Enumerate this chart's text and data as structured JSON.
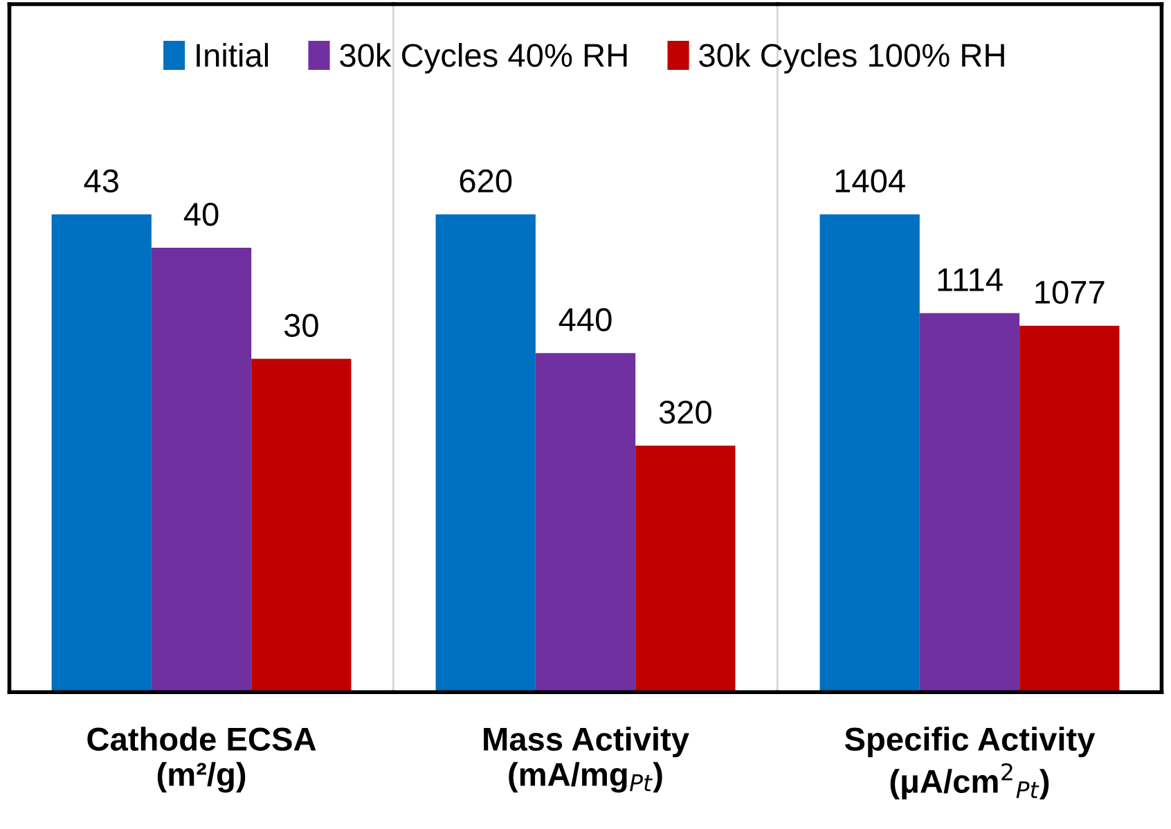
{
  "chart_data": [
    {
      "type": "bar",
      "categories": [
        null
      ],
      "xlabel": "Cathode ECSA\n(m²/g)",
      "data_labels": true,
      "legend": "top",
      "series": [
        {
          "name": "Initial",
          "color": "#0070c0",
          "values": [
            43
          ]
        },
        {
          "name": "30k Cycles 40% RH",
          "color": "#7030a0",
          "values": [
            40
          ]
        },
        {
          "name": "30k Cycles 100% RH",
          "color": "#c00000",
          "values": [
            30
          ]
        }
      ]
    },
    {
      "type": "bar",
      "categories": [
        null
      ],
      "xlabel": "Mass Activity\n(mA/mg$_{Pt}$)",
      "data_labels": true,
      "series": [
        {
          "color": "#0070c0",
          "values": [
            620
          ]
        },
        {
          "color": "#7030a0",
          "values": [
            440
          ]
        },
        {
          "color": "#c00000",
          "values": [
            320
          ]
        }
      ]
    },
    {
      "type": "bar",
      "categories": [
        null
      ],
      "xlabel": "Specific Activity\n(μA/cm$^{2}$$_{Pt}$)",
      "data_labels": true,
      "series": [
        {
          "color": "#0070c0",
          "values": [
            1404
          ]
        },
        {
          "color": "#7030a0",
          "values": [
            1114
          ]
        },
        {
          "color": "#c00000",
          "values": [
            1077
          ]
        }
      ]
    }
  ]
}
